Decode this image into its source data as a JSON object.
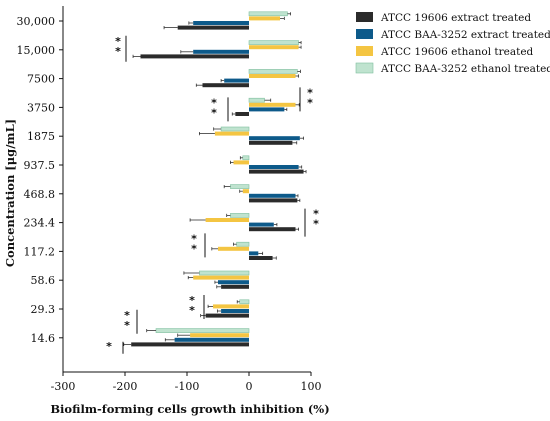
{
  "chart_data": {
    "type": "bar",
    "orientation": "horizontal",
    "xlabel": "Biofilm-forming cells growth inhibition (%)",
    "ylabel": "Concentration [μg/mL]",
    "xlim": [
      -300,
      100
    ],
    "xticks": [
      "-300",
      "-200",
      "-100",
      "0",
      "100"
    ],
    "categories": [
      "30,000",
      "15,000",
      "7500",
      "3750",
      "1875",
      "937.5",
      "468.8",
      "234.4",
      "117.2",
      "58.6",
      "29.3",
      "14.6"
    ],
    "series": [
      {
        "name": "ATCC 19606 extract treated",
        "color": "#2b2b2b",
        "values": [
          -115,
          -175,
          -75,
          -22,
          70,
          88,
          78,
          75,
          38,
          -45,
          -70,
          -190
        ],
        "errors": [
          22,
          12,
          10,
          5,
          7,
          4,
          4,
          5,
          6,
          7,
          8,
          12
        ]
      },
      {
        "name": "ATCC BAA-3252 extract treated",
        "color": "#0d5a8a",
        "values": [
          -90,
          -90,
          -40,
          57,
          82,
          80,
          75,
          40,
          15,
          -50,
          -45,
          -120
        ],
        "errors": [
          7,
          20,
          5,
          4,
          6,
          5,
          4,
          5,
          7,
          5,
          6,
          15
        ]
      },
      {
        "name": "ATCC 19606 ethanol treated",
        "color": "#f4c542",
        "values": [
          50,
          80,
          75,
          75,
          -55,
          -25,
          -10,
          -70,
          -50,
          -90,
          -58,
          -95
        ],
        "errors": [
          7,
          4,
          5,
          6,
          25,
          5,
          5,
          25,
          10,
          8,
          8,
          20
        ]
      },
      {
        "name": "ATCC BAA-3252 ethanol treated",
        "color": "#bfe3cf",
        "values": [
          62,
          80,
          78,
          25,
          -45,
          -10,
          -30,
          -30,
          -20,
          -80,
          -15,
          -150
        ],
        "errors": [
          5,
          4,
          5,
          10,
          12,
          4,
          10,
          6,
          5,
          25,
          4,
          15
        ]
      }
    ],
    "significance": [
      {
        "category": "15,000",
        "label": "**"
      },
      {
        "category": "3750",
        "label": "**"
      },
      {
        "category": "3750",
        "label": "**"
      },
      {
        "category": "234.4",
        "label": "**"
      },
      {
        "category": "117.2",
        "label": "**"
      },
      {
        "category": "29.3",
        "label": "**"
      },
      {
        "category": "14.6",
        "label": "**"
      },
      {
        "category": "14.6",
        "label": "*"
      }
    ],
    "legend": "top-right"
  }
}
